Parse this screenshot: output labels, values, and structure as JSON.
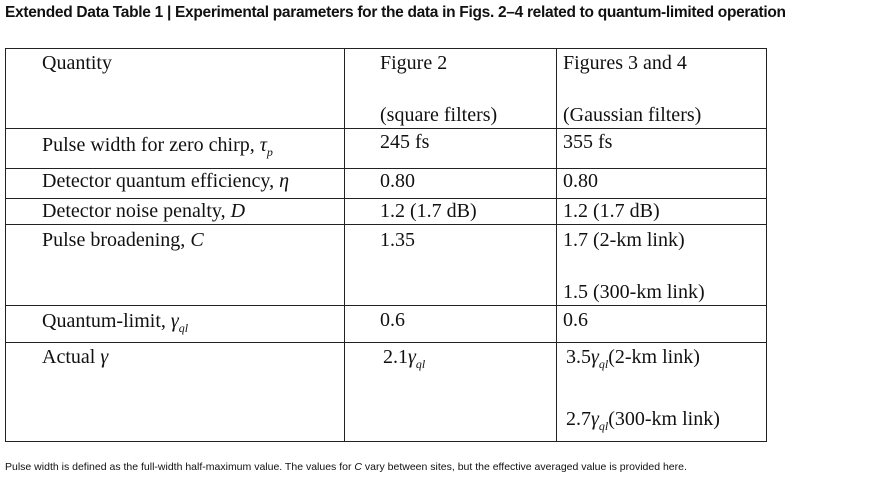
{
  "title": "Extended Data Table 1 | Experimental parameters for the data in Figs. 2–4 related to quantum-limited operation",
  "table": {
    "header": [
      [
        "Quantity"
      ],
      [
        "Figure 2",
        "(square filters)"
      ],
      [
        "Figures 3 and 4",
        "(Gaussian filters)"
      ]
    ],
    "rows": [
      [
        [
          "Pulse width for zero chirp, ",
          "τ",
          "p"
        ],
        [
          "245 fs"
        ],
        [
          "355 fs"
        ]
      ],
      [
        [
          "Detector quantum efficiency, ",
          "η"
        ],
        [
          "0.80"
        ],
        [
          "0.80"
        ]
      ],
      [
        [
          "Detector noise penalty, ",
          "D"
        ],
        [
          "1.2 (1.7 dB)"
        ],
        [
          "1.2 (1.7 dB)"
        ]
      ],
      [
        [
          "Pulse broadening, ",
          "C"
        ],
        [
          "1.35"
        ],
        [
          "1.7 (2-km link)",
          "1.5 (300-km link)"
        ]
      ],
      [
        [
          "Quantum-limit, ",
          "γ",
          "ql"
        ],
        [
          "0.6"
        ],
        [
          "0.6"
        ]
      ],
      [
        [
          "Actual ",
          "γ"
        ],
        [
          "2.1",
          "γ",
          "ql"
        ],
        [
          "3.5",
          "γ",
          "ql",
          "(2-km link)",
          "2.7",
          "γ",
          "ql",
          "(300-km link)"
        ]
      ]
    ]
  },
  "footnote": [
    "Pulse width is defined as the full-width half-maximum value. The values for ",
    "C",
    " vary between sites, but the effective averaged value is provided here."
  ]
}
